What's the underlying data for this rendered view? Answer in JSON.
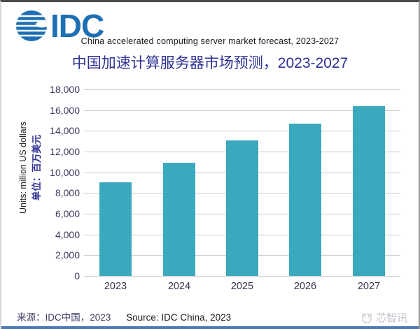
{
  "brand": {
    "name": "IDC",
    "logo_color": "#1E6FB4"
  },
  "header": {
    "title_en": "China accelerated computing server market forecast, 2023-2027",
    "title_zh": "中国加速计算服务器市场预测，2023-2027"
  },
  "chart_data": {
    "type": "bar",
    "title": "中国加速计算服务器市场预测，2023-2027",
    "title_en": "China accelerated computing server market forecast, 2023-2027",
    "categories": [
      "2023",
      "2024",
      "2025",
      "2026",
      "2027"
    ],
    "values": [
      9000,
      10900,
      13100,
      14700,
      16400
    ],
    "ylabel_en": "Units: million US dollars",
    "ylabel_zh": "单位：百万美元",
    "ylim": [
      0,
      18000
    ],
    "ytick_interval": 2000,
    "ytick_labels": [
      "18,000",
      "16,000",
      "14,000",
      "12,000",
      "10,000",
      "8,000",
      "6,000",
      "4,000",
      "2,000",
      "0"
    ],
    "bar_color": "#3AA9BE",
    "gridline_color": "#C9C9CE",
    "grid": true,
    "legend": "none"
  },
  "footer": {
    "source_zh": "来源：IDC中国，2023",
    "source_en": "Source: IDC China, 2023"
  },
  "watermark": {
    "text": "芯智讯"
  }
}
